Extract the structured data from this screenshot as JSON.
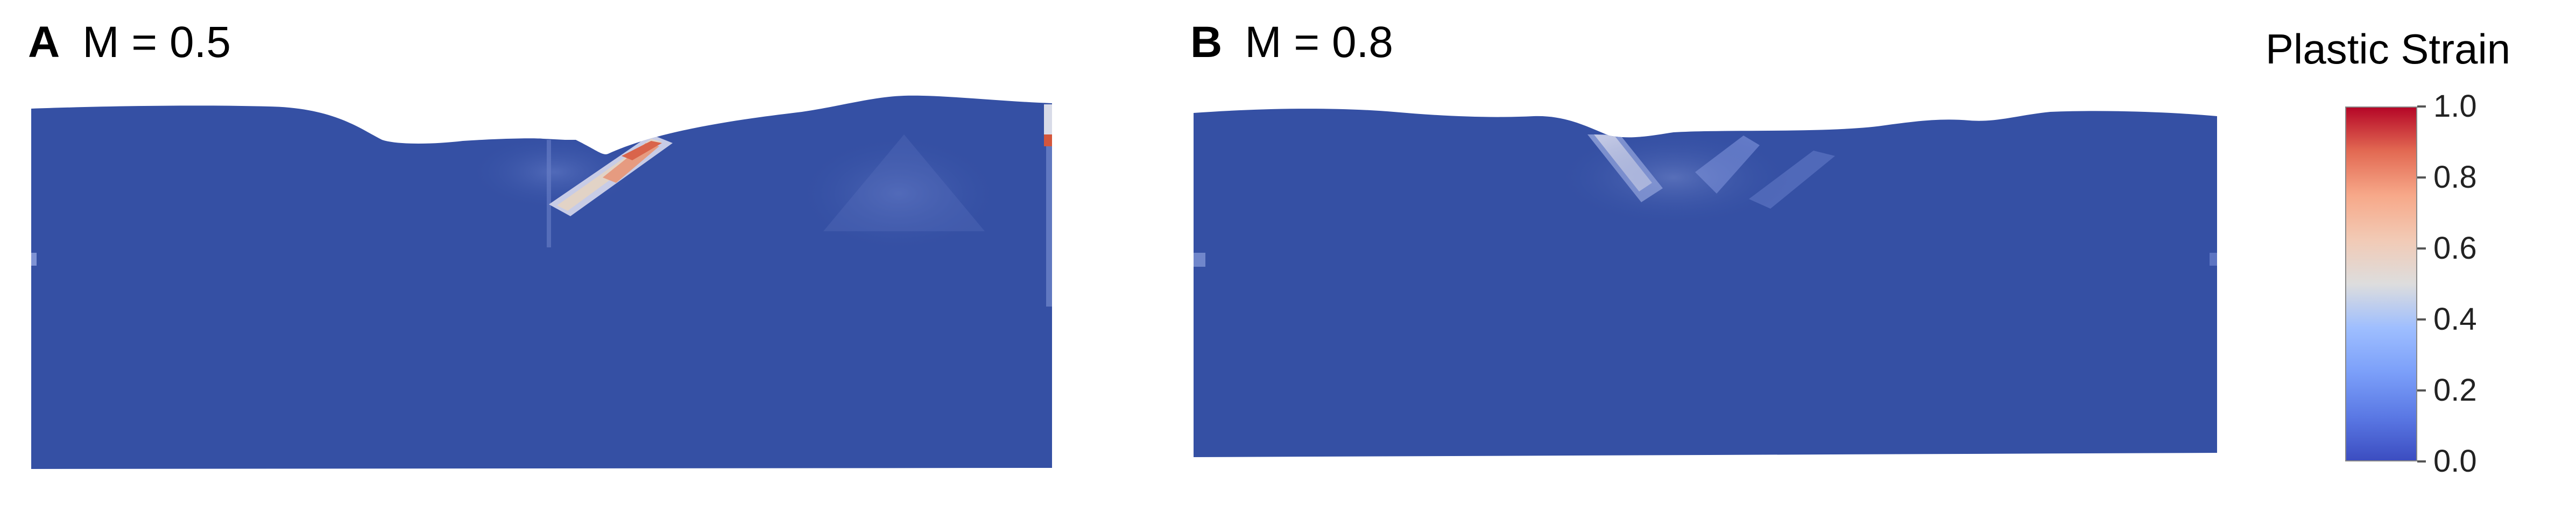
{
  "panels": [
    {
      "letter": "A",
      "label": "M = 0.5"
    },
    {
      "letter": "B",
      "label": "M = 0.8"
    }
  ],
  "colorbar": {
    "title": "Plastic Strain",
    "ticks": [
      {
        "value": 1.0,
        "label": "1.0"
      },
      {
        "value": 0.8,
        "label": "0.8"
      },
      {
        "value": 0.6,
        "label": "0.6"
      },
      {
        "value": 0.4,
        "label": "0.4"
      },
      {
        "value": 0.2,
        "label": "0.2"
      },
      {
        "value": 0.0,
        "label": "0.0"
      }
    ],
    "range": [
      0.0,
      1.0
    ]
  },
  "colors": {
    "base": "#3550a4",
    "low": "#3b4cc0",
    "mid": "#dddddd",
    "high": "#b40426"
  }
}
